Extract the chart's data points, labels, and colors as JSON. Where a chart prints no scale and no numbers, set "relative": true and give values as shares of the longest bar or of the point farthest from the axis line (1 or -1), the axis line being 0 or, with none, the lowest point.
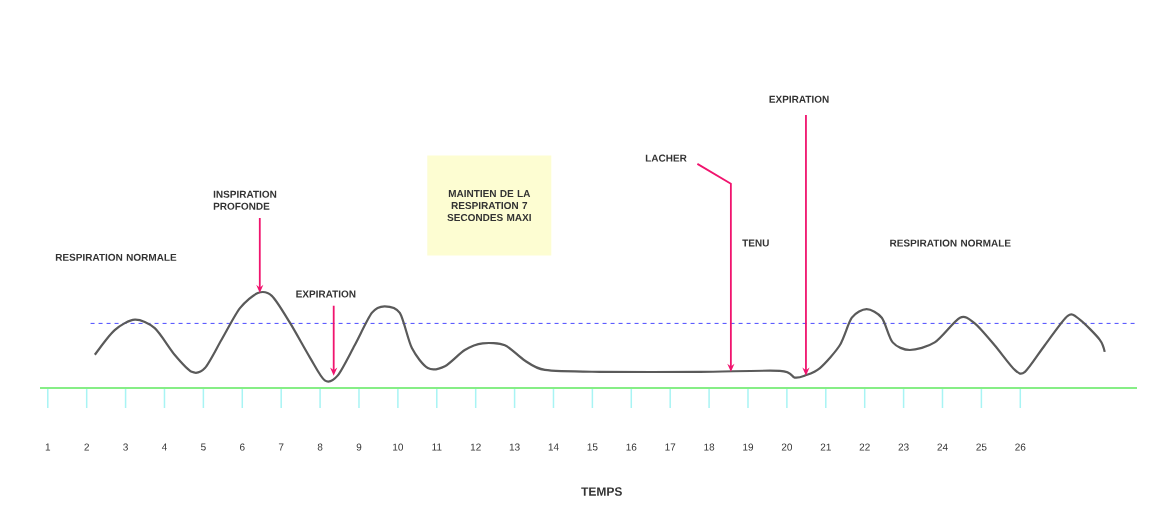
{
  "chart_data": {
    "type": "line",
    "relative": true,
    "xlabel": "TEMPS",
    "xlim": [
      0.8,
      29.0
    ],
    "xticks": [
      1,
      2,
      3,
      4,
      5,
      6,
      7,
      8,
      9,
      10,
      11,
      12,
      13,
      14,
      15,
      16,
      17,
      18,
      19,
      20,
      21,
      22,
      23,
      24,
      25,
      26
    ],
    "x": [
      2.21,
      2.72,
      3.24,
      3.75,
      4.26,
      4.7,
      5.04,
      5.47,
      5.94,
      6.4,
      6.76,
      7.22,
      7.74,
      8.12,
      8.45,
      8.89,
      9.33,
      9.66,
      10.05,
      10.36,
      10.77,
      11.21,
      11.72,
      12.18,
      12.75,
      13.26,
      13.78,
      15.19,
      17.76,
      19.82,
      20.2,
      20.46,
      20.85,
      21.36,
      21.67,
      22.05,
      22.44,
      22.72,
      23.16,
      23.8,
      24.45,
      24.83,
      25.34,
      25.86,
      26.12,
      26.63,
      27.22,
      27.53,
      28.04,
      28.17
    ],
    "values": [
      0.35,
      0.61,
      0.72,
      0.63,
      0.35,
      0.17,
      0.21,
      0.51,
      0.84,
      1.0,
      0.97,
      0.69,
      0.32,
      0.08,
      0.13,
      0.45,
      0.79,
      0.86,
      0.79,
      0.42,
      0.21,
      0.23,
      0.4,
      0.47,
      0.45,
      0.29,
      0.19,
      0.17,
      0.17,
      0.18,
      0.11,
      0.13,
      0.21,
      0.45,
      0.74,
      0.83,
      0.74,
      0.48,
      0.4,
      0.48,
      0.74,
      0.68,
      0.45,
      0.19,
      0.17,
      0.45,
      0.76,
      0.72,
      0.51,
      0.38
    ],
    "color": "#5a5a5a",
    "ref_lines": [
      {
        "axis": "y",
        "value": 0.68,
        "color": "#4a4aff",
        "line_style": "dashed"
      }
    ],
    "annotations": [
      "RESPIRATION NORMALE",
      {
        "text": "INSPIRATION PROFONDE",
        "x": 6.45,
        "y": 1.0
      },
      {
        "text": "EXPIRATION",
        "x": 8.35,
        "y": 0.13
      },
      "MAINTIEN DE LA RESPIRATION 7 SECONDES MAXI",
      {
        "text": "LACHER",
        "x": 18.56,
        "y": 0.17
      },
      "TENU",
      {
        "text": "EXPIRATION",
        "x": 20.49,
        "y": 0.13
      },
      "RESPIRATION NORMALE"
    ]
  }
}
